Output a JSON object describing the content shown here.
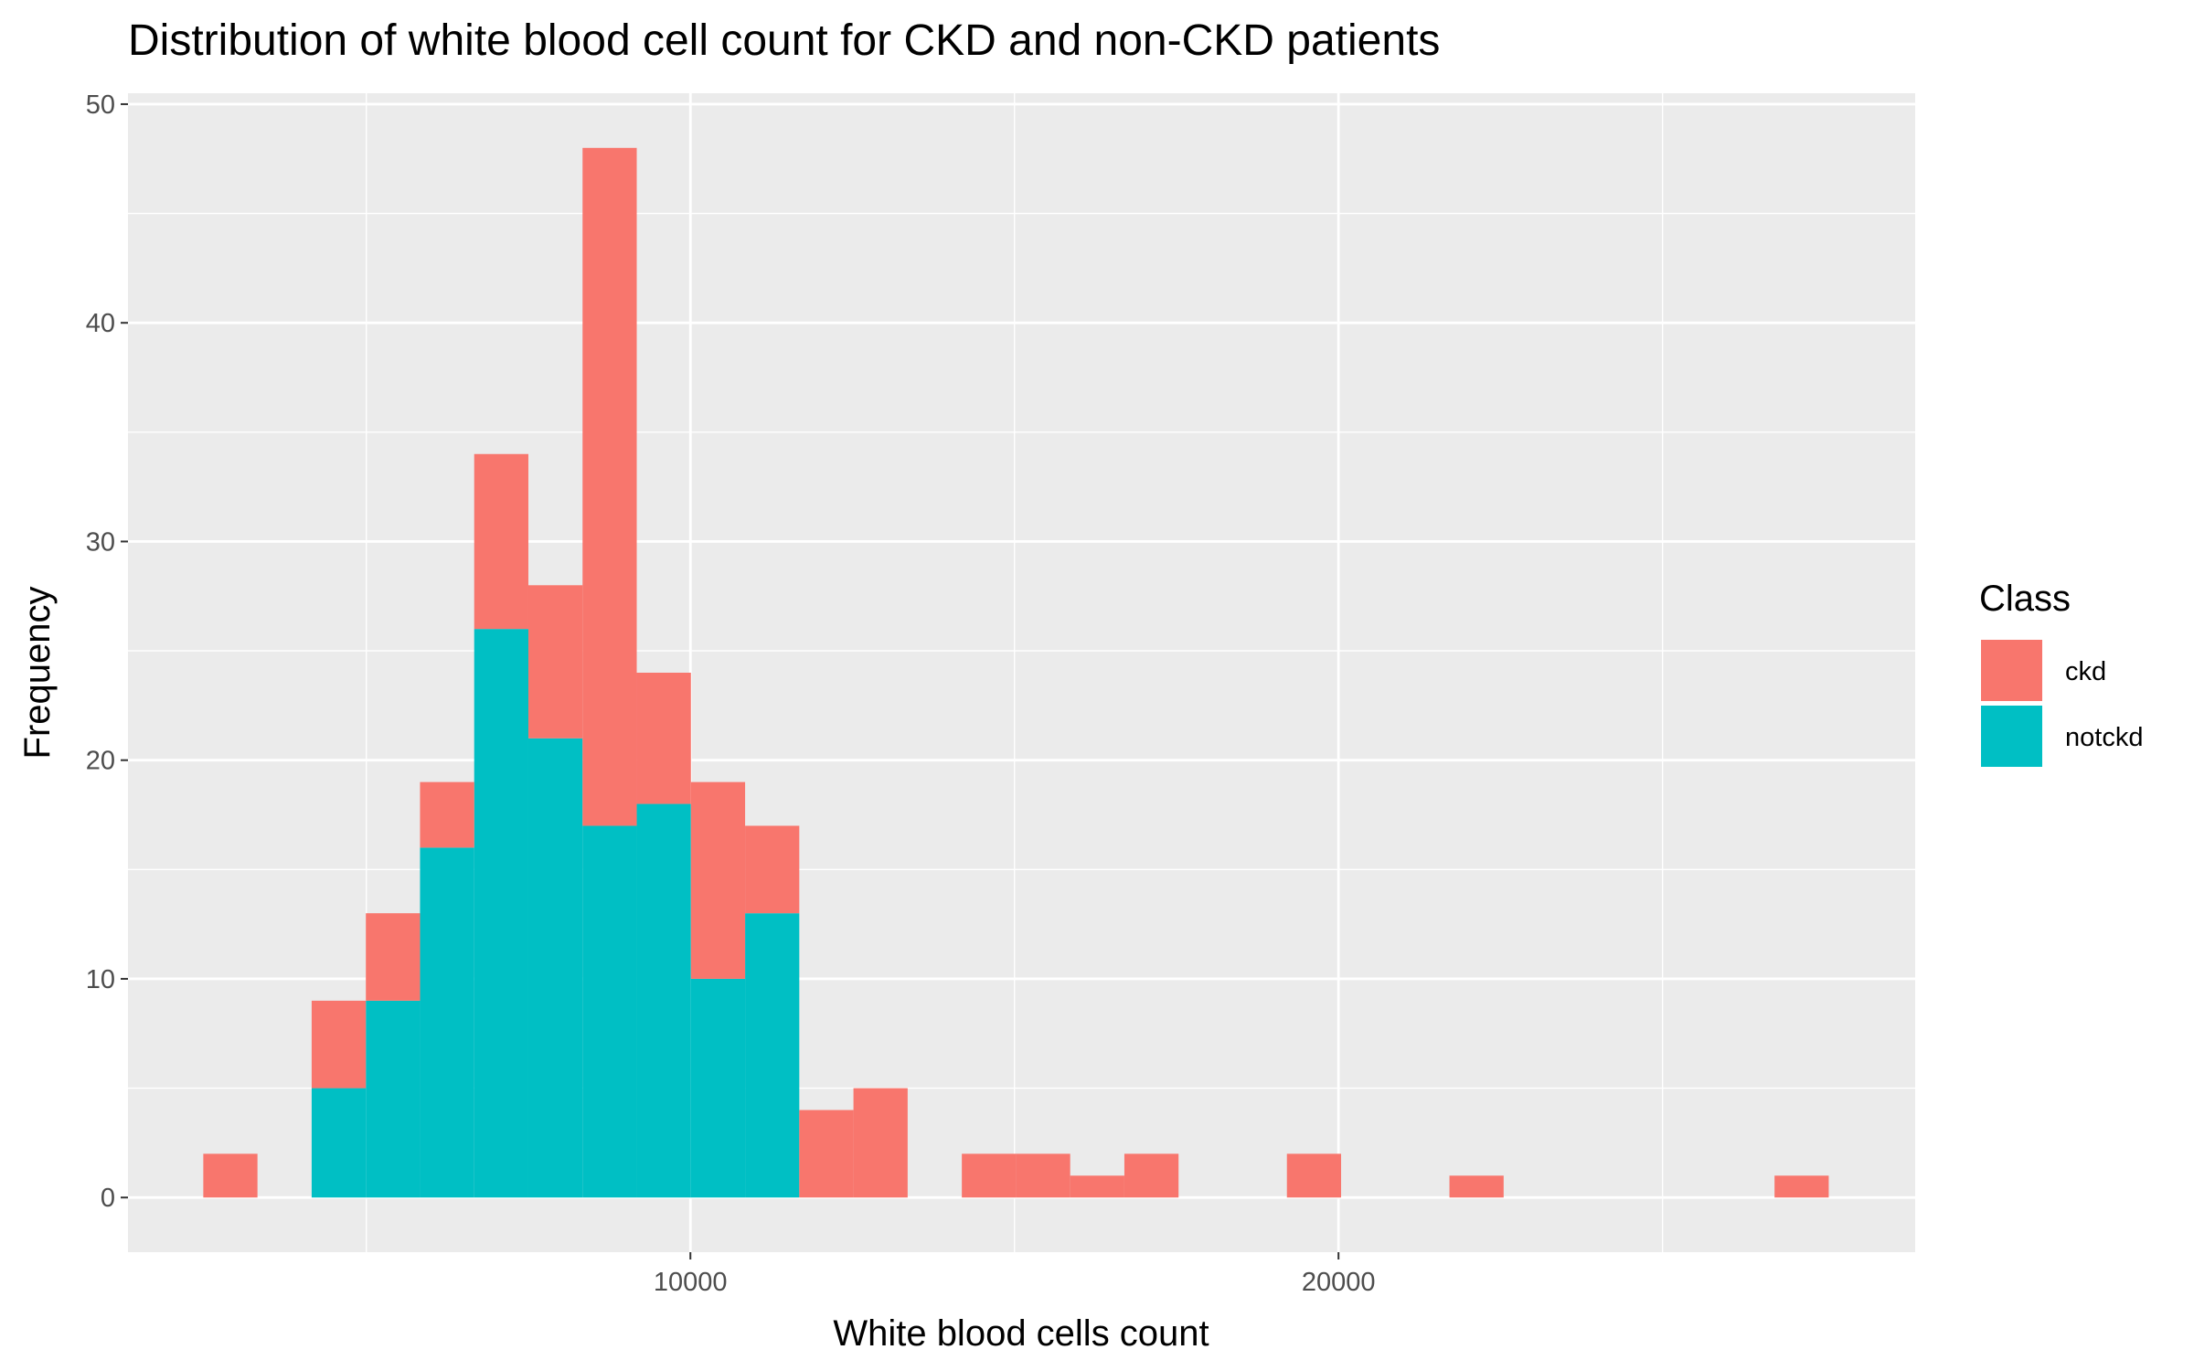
{
  "chart_data": {
    "type": "bar",
    "stacked": true,
    "title": "Distribution of white blood cell count for CKD and non-CKD patients",
    "xlabel": "White blood cells count",
    "ylabel": "Frequency",
    "bin_width": 836,
    "xlim": [
      1322,
      28898
    ],
    "ylim": [
      -2.5,
      50.5
    ],
    "x_major_ticks": [
      10000,
      20000
    ],
    "x_minor_ticks": [
      5000,
      15000,
      25000
    ],
    "y_major_ticks": [
      0,
      10,
      20,
      30,
      40,
      50
    ],
    "y_tick_labels": [
      "0",
      "10",
      "20",
      "30",
      "40",
      "50"
    ],
    "x_tick_labels": [
      "10000",
      "20000"
    ],
    "legend": {
      "title": "Class",
      "position": "right"
    },
    "series": [
      {
        "name": "notckd",
        "color": "#00BFC4",
        "bins": [
          {
            "x": 4574,
            "count": 5
          },
          {
            "x": 5410,
            "count": 9
          },
          {
            "x": 6246,
            "count": 16
          },
          {
            "x": 7082,
            "count": 26
          },
          {
            "x": 7918,
            "count": 21
          },
          {
            "x": 8754,
            "count": 17
          },
          {
            "x": 9590,
            "count": 18
          },
          {
            "x": 10426,
            "count": 10
          },
          {
            "x": 11262,
            "count": 13
          }
        ]
      },
      {
        "name": "ckd",
        "color": "#F8766D",
        "bins": [
          {
            "x": 2902,
            "count": 2
          },
          {
            "x": 4574,
            "count": 4
          },
          {
            "x": 5410,
            "count": 4
          },
          {
            "x": 6246,
            "count": 3
          },
          {
            "x": 7082,
            "count": 8
          },
          {
            "x": 7918,
            "count": 7
          },
          {
            "x": 8754,
            "count": 31
          },
          {
            "x": 9590,
            "count": 6
          },
          {
            "x": 10426,
            "count": 9
          },
          {
            "x": 11262,
            "count": 4
          },
          {
            "x": 12098,
            "count": 4
          },
          {
            "x": 12934,
            "count": 5
          },
          {
            "x": 14606,
            "count": 2
          },
          {
            "x": 15442,
            "count": 2
          },
          {
            "x": 16278,
            "count": 1
          },
          {
            "x": 17114,
            "count": 2
          },
          {
            "x": 19622,
            "count": 2
          },
          {
            "x": 22130,
            "count": 1
          },
          {
            "x": 27146,
            "count": 1
          }
        ]
      }
    ],
    "legend_order": [
      "ckd",
      "notckd"
    ]
  },
  "colors": {
    "panel_bg": "#EBEBEB",
    "grid": "#FFFFFF",
    "tick": "#333333"
  }
}
